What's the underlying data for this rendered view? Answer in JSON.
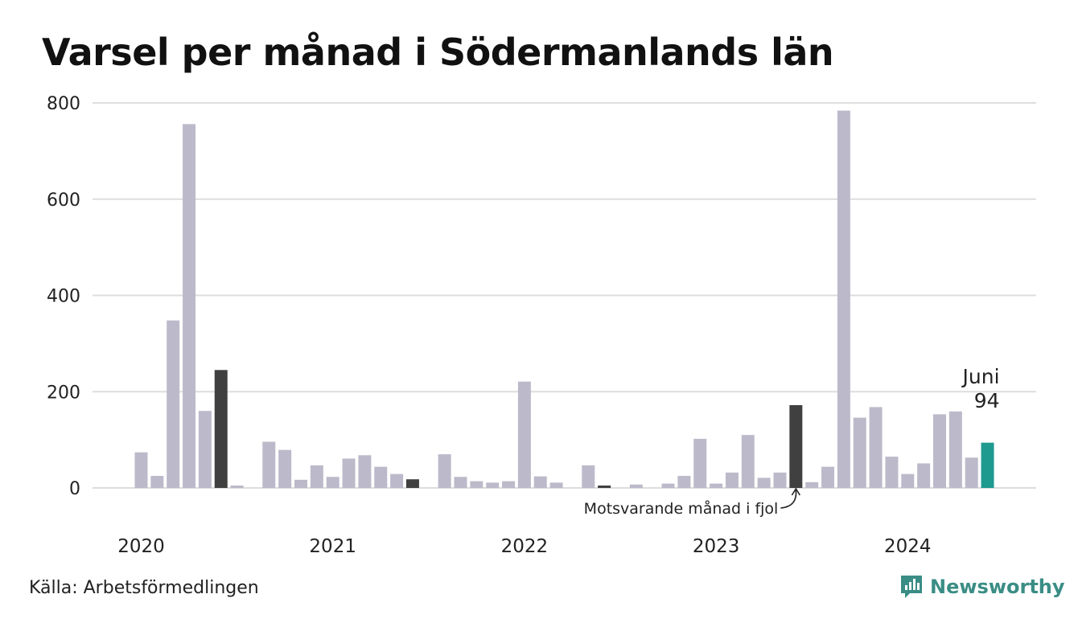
{
  "chart_data": {
    "type": "bar",
    "title": "Varsel per månad i Södermanlands län",
    "xlabel": "",
    "ylabel": "",
    "ylim": [
      0,
      800
    ],
    "yticks": [
      0,
      200,
      400,
      600,
      800
    ],
    "x_tick_labels": [
      "2020",
      "2021",
      "2022",
      "2023",
      "2024"
    ],
    "categories": [
      "2020-01",
      "2020-02",
      "2020-03",
      "2020-04",
      "2020-05",
      "2020-06",
      "2020-07",
      "2020-08",
      "2020-09",
      "2020-10",
      "2020-11",
      "2020-12",
      "2021-01",
      "2021-02",
      "2021-03",
      "2021-04",
      "2021-05",
      "2021-06",
      "2021-07",
      "2021-08",
      "2021-09",
      "2021-10",
      "2021-11",
      "2021-12",
      "2022-01",
      "2022-02",
      "2022-03",
      "2022-04",
      "2022-05",
      "2022-06",
      "2022-07",
      "2022-08",
      "2022-09",
      "2022-10",
      "2022-11",
      "2022-12",
      "2023-01",
      "2023-02",
      "2023-03",
      "2023-04",
      "2023-05",
      "2023-06",
      "2023-07",
      "2023-08",
      "2023-09",
      "2023-10",
      "2023-11",
      "2023-12",
      "2024-01",
      "2024-02",
      "2024-03",
      "2024-04",
      "2024-05",
      "2024-06"
    ],
    "values": [
      74,
      25,
      348,
      756,
      160,
      245,
      5,
      0,
      96,
      79,
      17,
      47,
      23,
      61,
      68,
      44,
      29,
      18,
      0,
      70,
      23,
      14,
      11,
      14,
      221,
      24,
      11,
      0,
      47,
      5,
      0,
      7,
      0,
      9,
      25,
      102,
      9,
      32,
      110,
      21,
      32,
      172,
      12,
      44,
      784,
      146,
      168,
      65,
      29,
      51,
      153,
      159,
      63,
      94
    ],
    "colors": {
      "default": "#bcbaca",
      "previous_year": "#404040",
      "current": "#1f9a8f",
      "grid": "#dddddd"
    },
    "dark_bars": [
      "2020-06",
      "2021-06",
      "2022-06",
      "2023-06"
    ],
    "current_bar": "2024-06",
    "highlight_label": {
      "month": "Juni",
      "value": "94"
    },
    "annotation": {
      "text": "Motsvarande månad i fjol",
      "target": "2023-06"
    },
    "grid": true,
    "legend": "none"
  },
  "source": "Källa: Arbetsförmedlingen",
  "brand": {
    "name": "Newsworthy",
    "logo_icon": "newsworthy-logo-icon",
    "color": "#3a8d85"
  }
}
